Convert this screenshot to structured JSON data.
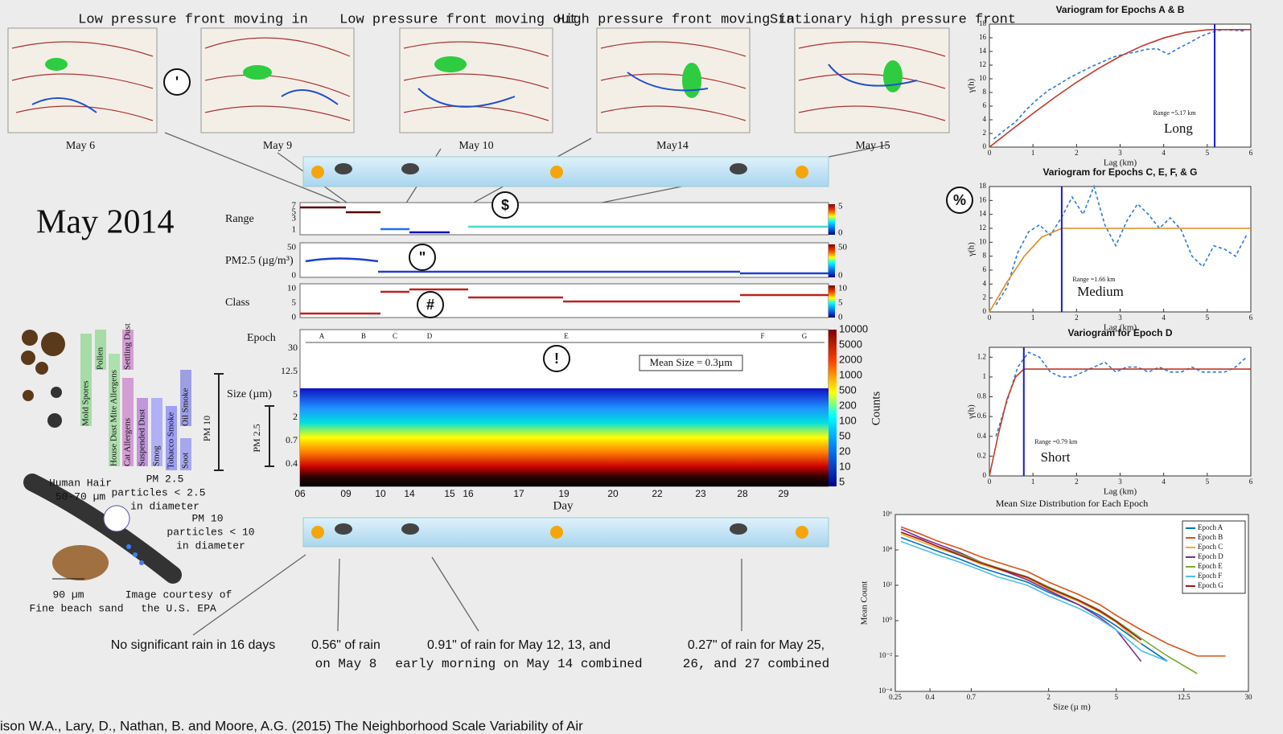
{
  "slide_title": "May 2014",
  "fronts": [
    "Low pressure front moving in",
    "Low pressure front moving out",
    "High pressure front moving in",
    "Stationary high pressure front"
  ],
  "map_dates": [
    "May 6",
    "May 9",
    "May 10",
    "May14",
    "May 15"
  ],
  "callouts": [
    "'",
    "$",
    "\"",
    "#",
    "!",
    "%",
    "&"
  ],
  "range_panel": {
    "label": "Range",
    "yticks": [
      7,
      5,
      3,
      1
    ],
    "colorbar_ticks": [
      5,
      0
    ]
  },
  "pm_panel": {
    "label": "PM2.5 (µg/m³)",
    "yticks": [
      50,
      0
    ],
    "colorbar_ticks": [
      50,
      0
    ]
  },
  "class_panel": {
    "label": "Class",
    "yticks": [
      10,
      5,
      0
    ],
    "colorbar_ticks": [
      10,
      5,
      0
    ]
  },
  "epoch_panel": {
    "label": "Epoch",
    "epochs": [
      "A",
      "B",
      "C",
      "D",
      "E",
      "F",
      "G"
    ],
    "size_label": "Size (µm)",
    "pm25_label": "PM 2.5",
    "pm10_label": "PM 10",
    "yticks": [
      30,
      12.5,
      5,
      2,
      0.7,
      0.4
    ],
    "colorbar_ticks": [
      10000,
      5000,
      2000,
      1000,
      500,
      200,
      100,
      50,
      20,
      10,
      5
    ],
    "colorbar_label": "Counts",
    "annotation": "Mean Size = 0.3µm",
    "days": [
      "06",
      "09",
      "10",
      "14",
      "15",
      "16",
      "17",
      "19",
      "20",
      "22",
      "23",
      "28",
      "29"
    ],
    "xlabel": "Day"
  },
  "pollutants": [
    "Mold Spores",
    "Pollen",
    "House Dust Mite Allergens",
    "Cat Allergens",
    "Settling Dust",
    "Suspended Dust",
    "Smog",
    "Tobacco Smoke",
    "Soot",
    "Oil Smoke"
  ],
  "hair_diagram": {
    "hair": "Human Hair",
    "hair_size": "50-70 µm",
    "pm25": "PM 2.5",
    "pm25_desc": "particles < 2.5",
    "pm25_desc2": "in diameter",
    "pm10": "PM 10",
    "pm10_desc": "particles < 10",
    "pm10_desc2": "in diameter",
    "sand_size": "90 µm",
    "sand": "Fine beach sand",
    "credit": "Image courtesy of",
    "credit2": "the U.S. EPA"
  },
  "rain_notes": [
    {
      "line1": "No significant rain in 16 days"
    },
    {
      "line1": "0.56\" of rain",
      "line2": "on May 8"
    },
    {
      "line1": "0.91\" of rain for May 12, 13, and",
      "line2": "early morning on May 14 combined"
    },
    {
      "line1": "0.27\" of rain for May 25,",
      "line2": "26, and 27 combined"
    }
  ],
  "citation": "ison W.A., Lary, D., Nathan, B. and Moore, A.G. (2015) The Neighborhood Scale Variability of Air",
  "chart_data": [
    {
      "type": "line",
      "title": "Variogram for Epochs A & B",
      "xlabel": "Lag (km)",
      "ylabel": "γ(h)",
      "xlim": [
        0,
        6
      ],
      "ylim": [
        0,
        18
      ],
      "xticks": [
        0,
        1,
        2,
        3,
        4,
        5,
        6
      ],
      "yticks": [
        0,
        2,
        4,
        6,
        8,
        10,
        12,
        14,
        16,
        18
      ],
      "range": 5.17,
      "range_label": "Range =5.17 km",
      "label": "Long",
      "series": [
        {
          "color": "#2b7bd6",
          "style": "dashed",
          "x": [
            0.1,
            0.35,
            0.6,
            0.85,
            1.1,
            1.35,
            1.6,
            1.85,
            2.1,
            2.35,
            2.6,
            2.85,
            3.1,
            3.35,
            3.6,
            3.85,
            4.1,
            4.35,
            4.6,
            4.85,
            5.1,
            5.35,
            5.6,
            5.85
          ],
          "values": [
            1.2,
            2.5,
            3.7,
            5.5,
            7,
            8.3,
            9.2,
            10.2,
            11,
            11.8,
            12.5,
            13.2,
            13.6,
            13.9,
            14.3,
            14.4,
            13.6,
            14.5,
            15.3,
            16.2,
            16.8,
            17.2,
            17.1,
            17
          ]
        },
        {
          "color": "#c0392b",
          "style": "solid",
          "x": [
            0,
            0.5,
            1,
            1.5,
            2,
            2.5,
            3,
            3.5,
            4,
            4.5,
            5,
            5.17,
            6
          ],
          "values": [
            0,
            2.49,
            4.93,
            7.28,
            9.48,
            11.5,
            13.29,
            14.8,
            15.98,
            16.79,
            17.17,
            17.2,
            17.2
          ]
        }
      ]
    },
    {
      "type": "line",
      "title": "Variogram for Epochs C, E, F, & G",
      "xlabel": "Lag (km)",
      "ylabel": "γ(h)",
      "xlim": [
        0,
        6
      ],
      "ylim": [
        0,
        18
      ],
      "xticks": [
        0,
        1,
        2,
        3,
        4,
        5,
        6
      ],
      "yticks": [
        0,
        2,
        4,
        6,
        8,
        10,
        12,
        14,
        16,
        18
      ],
      "range": 1.66,
      "range_label": "Range =1.66 km",
      "label": "Medium",
      "series": [
        {
          "color": "#2b7bd6",
          "style": "dashed",
          "x": [
            0.15,
            0.4,
            0.65,
            0.9,
            1.15,
            1.4,
            1.65,
            1.9,
            2.15,
            2.4,
            2.65,
            2.9,
            3.15,
            3.4,
            3.65,
            3.9,
            4.15,
            4.4,
            4.65,
            4.9,
            5.15,
            5.4,
            5.65,
            5.9
          ],
          "values": [
            1,
            3.5,
            8.5,
            11.5,
            12.5,
            11,
            13.5,
            16.5,
            14,
            18,
            12.5,
            9.5,
            13,
            15.5,
            14,
            12,
            13.5,
            11.8,
            8,
            6.5,
            9.5,
            9,
            8,
            11
          ]
        },
        {
          "color": "#e08a1e",
          "style": "solid",
          "x": [
            0,
            0.4,
            0.8,
            1.2,
            1.66,
            6
          ],
          "values": [
            0,
            4.25,
            8,
            10.74,
            12,
            12
          ]
        }
      ]
    },
    {
      "type": "line",
      "title": "Variogram for Epoch D",
      "xlabel": "Lag (km)",
      "ylabel": "γ(h)",
      "xlim": [
        0,
        6
      ],
      "ylim": [
        0,
        1.3
      ],
      "xticks": [
        0,
        1,
        2,
        3,
        4,
        5,
        6
      ],
      "yticks": [
        0,
        0.2,
        0.4,
        0.6,
        0.8,
        1,
        1.2
      ],
      "range": 0.79,
      "range_label": "Range =0.79 km",
      "label": "Short",
      "series": [
        {
          "color": "#2b7bd6",
          "style": "dashed",
          "x": [
            0.15,
            0.4,
            0.65,
            0.9,
            1.15,
            1.4,
            1.65,
            1.9,
            2.15,
            2.4,
            2.65,
            2.9,
            3.15,
            3.4,
            3.65,
            3.9,
            4.15,
            4.4,
            4.65,
            4.9,
            5.15,
            5.4,
            5.65,
            5.9
          ],
          "values": [
            0.4,
            0.75,
            1.1,
            1.25,
            1.2,
            1.05,
            1,
            1,
            1.05,
            1.1,
            1.15,
            1.05,
            1.1,
            1.1,
            1.05,
            1.1,
            1.05,
            1.05,
            1.1,
            1.05,
            1.05,
            1.05,
            1.1,
            1.2
          ]
        },
        {
          "color": "#c0392b",
          "style": "solid",
          "x": [
            0,
            0.2,
            0.4,
            0.6,
            0.79,
            6
          ],
          "values": [
            0,
            0.41,
            0.77,
            1,
            1.08,
            1.08
          ]
        }
      ]
    },
    {
      "type": "line",
      "title": "Mean Size Distribution for Each Epoch",
      "xlabel": "Size (µ m)",
      "ylabel": "Mean Count",
      "xscale": "log",
      "yscale": "log",
      "legend": "upper right",
      "xlim": [
        0.25,
        30
      ],
      "ylim": [
        0.0001,
        1000000
      ],
      "xticks": [
        0.25,
        0.4,
        0.7,
        2,
        5,
        12.5,
        30
      ],
      "yticks": [
        {
          "value": 0.0001,
          "label": "10⁻⁴"
        },
        {
          "value": 0.01,
          "label": "10⁻²"
        },
        {
          "value": 1,
          "label": "10⁰"
        },
        {
          "value": 100,
          "label": "10²"
        },
        {
          "value": 10000,
          "label": "10⁴"
        },
        {
          "value": 1000000,
          "label": "10⁶"
        }
      ],
      "x": [
        0.27,
        0.35,
        0.45,
        0.6,
        0.8,
        1,
        1.5,
        2,
        3,
        4,
        5,
        7,
        10,
        15,
        22
      ],
      "series": [
        {
          "name": "Epoch A",
          "color": "#0072bd",
          "values": [
            50000,
            20000,
            8000,
            3000,
            1000,
            500,
            150,
            40,
            8,
            2,
            0.5,
            0.05,
            0.005,
            null,
            null
          ]
        },
        {
          "name": "Epoch B",
          "color": "#d95319",
          "values": [
            200000,
            80000,
            30000,
            12000,
            4000,
            2000,
            600,
            150,
            30,
            8,
            2,
            0.3,
            0.05,
            0.01,
            0.01
          ]
        },
        {
          "name": "Epoch C",
          "color": "#edb120",
          "values": [
            80000,
            30000,
            12000,
            5000,
            1500,
            800,
            250,
            60,
            12,
            3,
            0.8,
            0.05,
            null,
            null,
            null
          ]
        },
        {
          "name": "Epoch D",
          "color": "#7e2f8e",
          "values": [
            150000,
            50000,
            20000,
            7000,
            2000,
            900,
            200,
            50,
            8,
            1.5,
            0.3,
            0.005,
            null,
            null,
            null
          ]
        },
        {
          "name": "Epoch E",
          "color": "#77ac30",
          "values": [
            100000,
            40000,
            15000,
            6000,
            2000,
            1000,
            300,
            80,
            15,
            4,
            1,
            0.1,
            0.01,
            0.001,
            null
          ]
        },
        {
          "name": "Epoch F",
          "color": "#4dbeee",
          "values": [
            30000,
            12000,
            5000,
            2000,
            700,
            300,
            100,
            25,
            5,
            1.2,
            0.3,
            0.02,
            0.005,
            null,
            null
          ]
        },
        {
          "name": "Epoch G",
          "color": "#a2142f",
          "values": [
            100000,
            40000,
            15000,
            5000,
            1800,
            900,
            280,
            70,
            14,
            3.5,
            0.9,
            0.08,
            null,
            null,
            null
          ]
        }
      ]
    }
  ]
}
